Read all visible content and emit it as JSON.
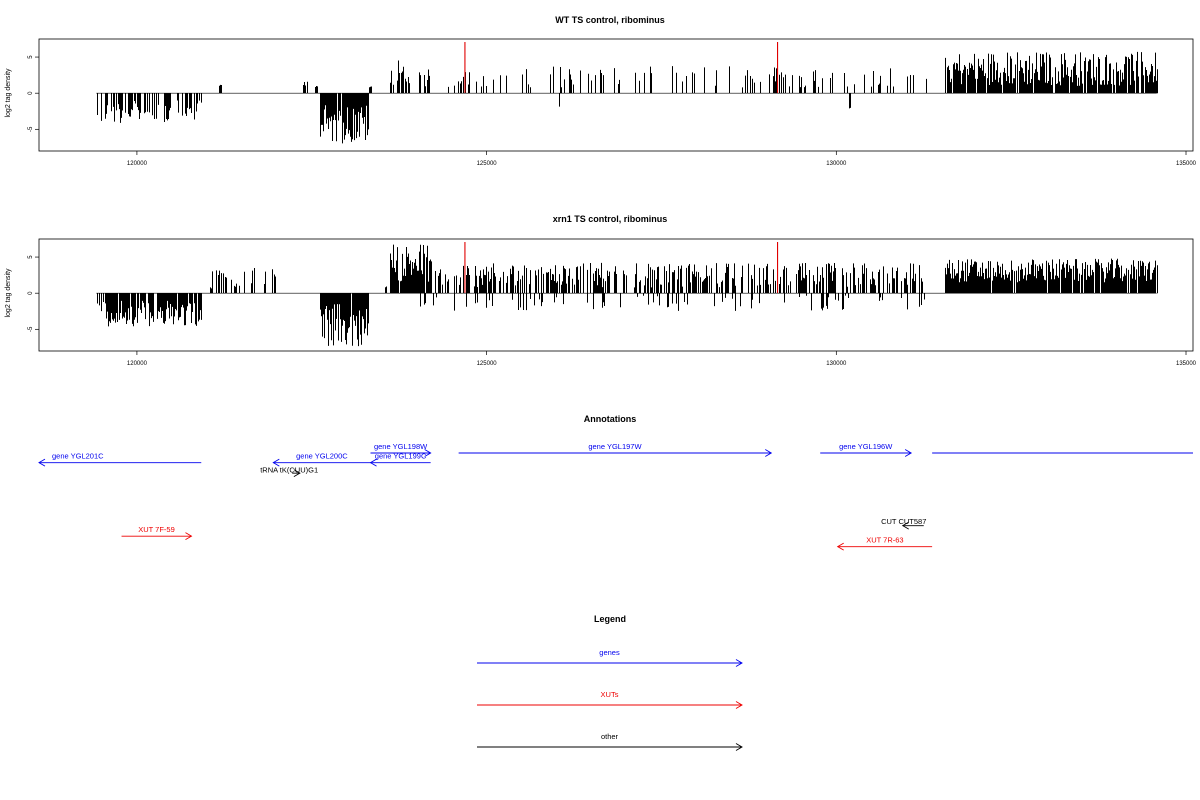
{
  "chart_data": [
    {
      "type": "bar",
      "title": "WT TS control, ribominus",
      "ylabel": "log2 tag density",
      "xlabel": "",
      "xlim": [
        118600,
        135100
      ],
      "ylim": [
        -8,
        7.5
      ],
      "x_ticks": [
        120000,
        125000,
        130000,
        135000
      ],
      "y_ticks": [
        -5,
        0,
        5
      ],
      "grid": false,
      "bar_color": "#000000",
      "marker_color": "#e00000",
      "markers": [
        124690,
        129160
      ],
      "segments": [
        {
          "start": 119420,
          "end": 120920,
          "sign": -1,
          "min": 1.0,
          "max": 4.2,
          "fill": 0.55
        },
        {
          "start": 121180,
          "end": 121200,
          "sign": 1,
          "min": 1.0,
          "max": 1.2,
          "fill": 1.0
        },
        {
          "start": 122380,
          "end": 122430,
          "sign": 1,
          "min": 1.0,
          "max": 1.6,
          "fill": 0.5
        },
        {
          "start": 122550,
          "end": 122570,
          "sign": 1,
          "min": 0.8,
          "max": 1.0,
          "fill": 1.0
        },
        {
          "start": 122620,
          "end": 123300,
          "sign": -1,
          "min": 1.5,
          "max": 7.0,
          "fill": 0.95
        },
        {
          "start": 123320,
          "end": 123340,
          "sign": 1,
          "min": 0.8,
          "max": 1.0,
          "fill": 1.0
        },
        {
          "start": 123620,
          "end": 123920,
          "sign": 1,
          "min": 1.0,
          "max": 4.8,
          "fill": 0.7
        },
        {
          "start": 123920,
          "end": 124220,
          "sign": 1,
          "min": 0.5,
          "max": 3.5,
          "fill": 0.45
        },
        {
          "start": 124400,
          "end": 131300,
          "sign": 1,
          "min": 0.8,
          "max": 3.8,
          "fill": 0.2
        },
        {
          "start": 126030,
          "end": 126040,
          "sign": -1,
          "min": 1.7,
          "max": 1.9,
          "fill": 1.0
        },
        {
          "start": 130180,
          "end": 130190,
          "sign": -1,
          "min": 1.9,
          "max": 2.1,
          "fill": 1.0
        },
        {
          "start": 131550,
          "end": 134580,
          "sign": 1,
          "min": 1.0,
          "max": 5.8,
          "fill": 0.9
        }
      ]
    },
    {
      "type": "bar",
      "title": "xrn1 TS control, ribominus",
      "ylabel": "log2 tag density",
      "xlabel": "",
      "xlim": [
        118600,
        135100
      ],
      "ylim": [
        -8,
        7.5
      ],
      "x_ticks": [
        120000,
        125000,
        130000,
        135000
      ],
      "y_ticks": [
        -5,
        0,
        5
      ],
      "grid": false,
      "bar_color": "#000000",
      "marker_color": "#e00000",
      "markers": [
        124690,
        129160
      ],
      "segments": [
        {
          "start": 119420,
          "end": 120920,
          "sign": -1,
          "min": 1.0,
          "max": 4.6,
          "fill": 0.8
        },
        {
          "start": 121050,
          "end": 122000,
          "sign": 1,
          "min": 0.5,
          "max": 3.5,
          "fill": 0.3
        },
        {
          "start": 122620,
          "end": 123300,
          "sign": -1,
          "min": 1.5,
          "max": 7.5,
          "fill": 0.95
        },
        {
          "start": 123540,
          "end": 123560,
          "sign": 1,
          "min": 0.8,
          "max": 1.0,
          "fill": 1.0
        },
        {
          "start": 123620,
          "end": 124200,
          "sign": 1,
          "min": 1.5,
          "max": 7.0,
          "fill": 0.95
        },
        {
          "start": 124200,
          "end": 131250,
          "sign": 1,
          "min": 0.8,
          "max": 4.2,
          "fill": 0.55
        },
        {
          "start": 124000,
          "end": 131250,
          "sign": -1,
          "min": 0.3,
          "max": 2.5,
          "fill": 0.15
        },
        {
          "start": 131550,
          "end": 134580,
          "sign": 1,
          "min": 1.5,
          "max": 4.8,
          "fill": 0.95
        }
      ]
    },
    {
      "type": "annotation_track",
      "title": "Annotations",
      "xlim": [
        118600,
        135100
      ],
      "features": [
        {
          "label": "gene YGL201C",
          "start": 118600,
          "end": 120920,
          "strand": "-",
          "color": "#0000ee",
          "row": 0.92
        },
        {
          "label": "gene YGL200C",
          "start": 121950,
          "end": 123340,
          "strand": "-",
          "color": "#0000ee",
          "row": 0.92
        },
        {
          "label": "gene YGL199C",
          "start": 123340,
          "end": 124200,
          "strand": "-",
          "color": "#0000ee",
          "row": 0.92
        },
        {
          "label": "gene YGL198W",
          "start": 123340,
          "end": 124200,
          "strand": "+",
          "color": "#0000ee",
          "row": 0.0
        },
        {
          "label": "gene YGL197W",
          "start": 124600,
          "end": 129070,
          "strand": "+",
          "color": "#0000ee",
          "row": 0.0
        },
        {
          "label": "gene YGL196W",
          "start": 129770,
          "end": 131070,
          "strand": "+",
          "color": "#0000ee",
          "row": 0.0
        },
        {
          "label": "",
          "start": 131370,
          "end": 135100,
          "strand": "none",
          "color": "#0000ee",
          "row": 0.0
        },
        {
          "label": "tRNA tK(CUU)G1",
          "start": 122220,
          "end": 122330,
          "strand": "+",
          "color": "#000000",
          "row": 1.92
        },
        {
          "label": "XUT 7F-59",
          "start": 119780,
          "end": 120780,
          "strand": "+",
          "color": "#ee0000",
          "row": 7.92
        },
        {
          "label": "CUT CUT587",
          "start": 130950,
          "end": 131250,
          "strand": "-",
          "color": "#000000",
          "row": 6.92
        },
        {
          "label": "XUT 7R-63",
          "start": 130020,
          "end": 131370,
          "strand": "-",
          "color": "#ee0000",
          "row": 8.92
        }
      ]
    },
    {
      "type": "legend",
      "title": "Legend",
      "entries": [
        {
          "label": "genes",
          "color": "#0000ee"
        },
        {
          "label": "XUTs",
          "color": "#ee0000"
        },
        {
          "label": "other",
          "color": "#000000"
        }
      ]
    }
  ]
}
